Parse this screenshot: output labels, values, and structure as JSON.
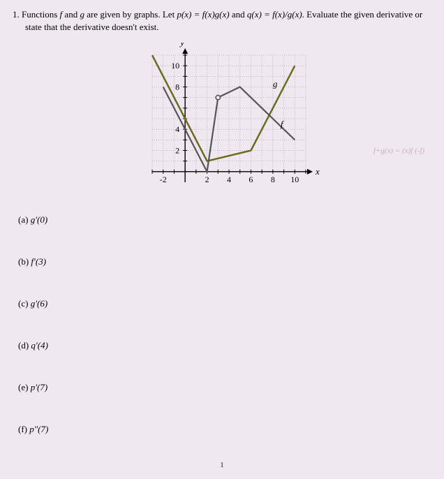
{
  "question": {
    "number": "1.",
    "text_part1": "Functions ",
    "f": "f",
    "text_part2": " and ",
    "g": "g",
    "text_part3": " are given by graphs. Let ",
    "p_def": "p(x) = f(x)g(x)",
    "text_part4": " and ",
    "q_def": "q(x) = f(x)/g(x)",
    "text_part5": ". Evaluate the given derivative or state that the derivative doesn't exist."
  },
  "graph": {
    "x_axis_label": "x",
    "y_axis_label": "y",
    "xmin": -3,
    "xmax": 11,
    "ymin": -1,
    "ymax": 11,
    "xtick_labels": [
      -2,
      2,
      4,
      6,
      8,
      10
    ],
    "ytick_labels": [
      2,
      4,
      8,
      10
    ],
    "grid_color": "#888888",
    "axis_color": "#000000",
    "background_color": "#f0e8f0",
    "series": {
      "f": {
        "label": "f",
        "color": "#555555",
        "width": 2.2,
        "points": [
          [
            -2,
            8
          ],
          [
            2,
            0
          ],
          [
            3,
            7
          ],
          [
            5,
            8
          ],
          [
            10,
            3
          ]
        ],
        "open_point": [
          3,
          7
        ],
        "label_pos": [
          8.7,
          4.2
        ]
      },
      "g": {
        "label": "g",
        "color": "#6b6b20",
        "width": 2.5,
        "points": [
          [
            -3,
            11
          ],
          [
            2,
            1
          ],
          [
            6,
            2
          ],
          [
            10,
            10
          ]
        ],
        "label_pos": [
          8,
          8
        ]
      }
    }
  },
  "parts": [
    {
      "id": "a",
      "label": "(a)",
      "expr": "g′(0)"
    },
    {
      "id": "b",
      "label": "(b)",
      "expr": "f′(3)"
    },
    {
      "id": "c",
      "label": "(c)",
      "expr": "g′(6)"
    },
    {
      "id": "d",
      "label": "(d)",
      "expr": "q′(4)"
    },
    {
      "id": "e",
      "label": "(e)",
      "expr": "p′(7)"
    },
    {
      "id": "f",
      "label": "(f)",
      "expr": "p″(7)"
    }
  ],
  "faint_annotation": "f+g(x) = (x)f (-f)",
  "page_number": "1"
}
